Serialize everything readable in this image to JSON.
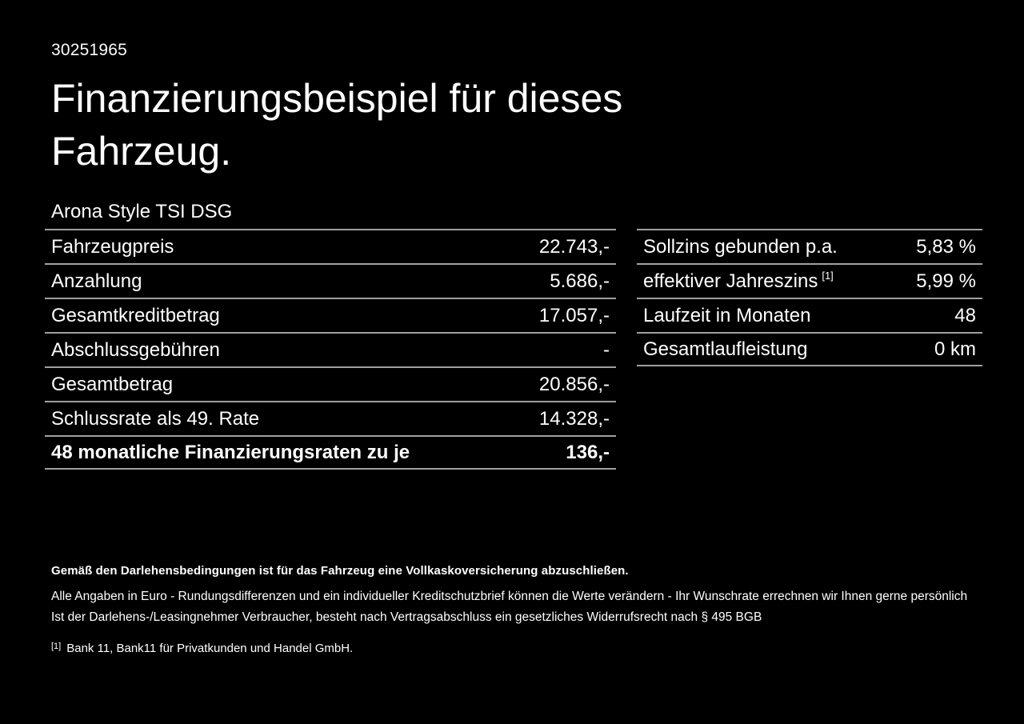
{
  "page": {
    "id_number": "30251965",
    "title": "Finanzierungsbeispiel für dieses Fahrzeug.",
    "model": "Arona Style TSI DSG"
  },
  "finance_table": {
    "rows": [
      {
        "label": "Fahrzeugpreis",
        "value": "22.743,-"
      },
      {
        "label": "Anzahlung",
        "value": "5.686,-"
      },
      {
        "label": "Gesamtkreditbetrag",
        "value": "17.057,-"
      },
      {
        "label": "Abschlussgebühren",
        "value": "-"
      },
      {
        "label": "Gesamtbetrag",
        "value": "20.856,-"
      },
      {
        "label": "Schlussrate als 49. Rate",
        "value": "14.328,-"
      },
      {
        "label": "48 monatliche Finanzierungsraten zu je",
        "value": "136,-"
      }
    ]
  },
  "conditions_table": {
    "rows": [
      {
        "label": "Sollzins gebunden p.a.",
        "value": "5,83 %"
      },
      {
        "label": "effektiver Jahreszins",
        "footnote_marker": "[1]",
        "value": "5,99 %"
      },
      {
        "label": "Laufzeit in Monaten",
        "value": "48"
      },
      {
        "label": "Gesamtlaufleistung",
        "value": "0 km"
      }
    ]
  },
  "footer": {
    "insurance_note": "Gemäß den Darlehensbedingungen ist für das Fahrzeug eine Vollkaskoversicherung abzuschließen.",
    "note_line1": "Alle Angaben in Euro - Rundungsdifferenzen und ein individueller Kreditschutzbrief können die Werte verändern - Ihr Wunschrate errechnen wir Ihnen gerne persönlich",
    "note_line2": "Ist der Darlehens-/Leasingnehmer Verbraucher, besteht nach Vertragsabschluss ein gesetzliches Widerrufsrecht nach § 495 BGB",
    "footnote_marker": "[1]",
    "footnote_text": "Bank 11, Bank11 für Privatkunden und Handel GmbH."
  },
  "colors": {
    "background": "#000000",
    "text": "#ffffff",
    "divider": "#a0a0a0"
  }
}
